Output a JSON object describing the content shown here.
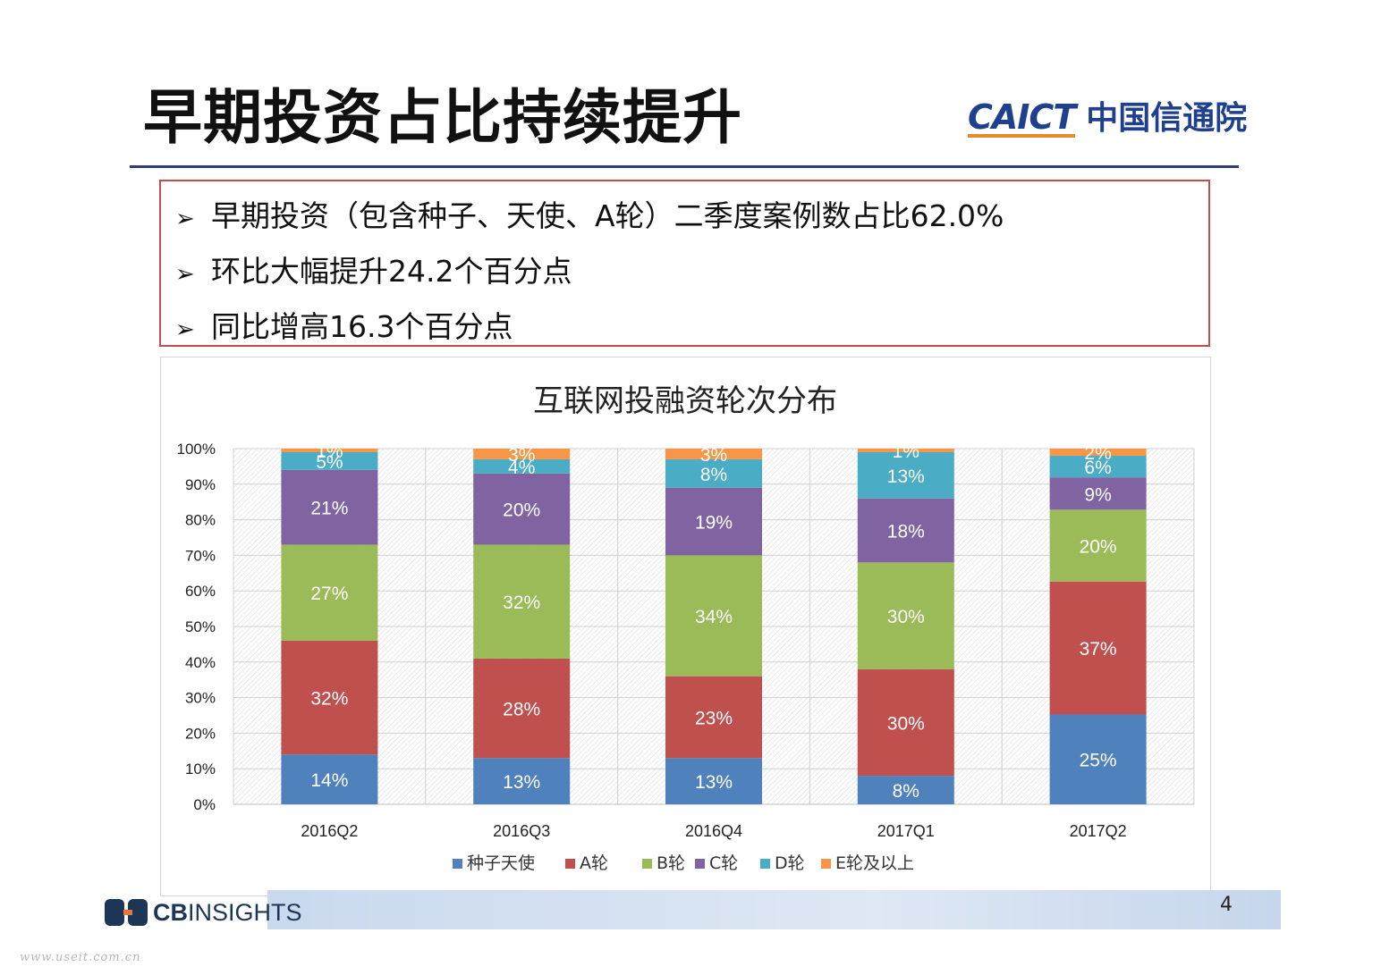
{
  "slide": {
    "title": "早期投资占比持续提升",
    "logo_en": "CAICT",
    "logo_cn": "中国信通院",
    "page_number": "4",
    "footer_logo_cb": "CB",
    "footer_logo_text": "INSIGHTS",
    "watermark": "www.useit.com.cn"
  },
  "bullets": [
    {
      "marker": "➢",
      "text": "早期投资（包含种子、天使、A轮）二季度案例数占比62.0%"
    },
    {
      "marker": "➢",
      "text": "环比大幅提升24.2个百分点"
    },
    {
      "marker": "➢",
      "text": "同比增高16.3个百分点"
    }
  ],
  "colors": {
    "title_rule": "#2a3f7a",
    "box_border": "#c0504d"
  },
  "chart_data": {
    "type": "bar",
    "stacked": true,
    "percent": true,
    "title": "互联网投融资轮次分布",
    "categories": [
      "2016Q2",
      "2016Q3",
      "2016Q4",
      "2017Q1",
      "2017Q2"
    ],
    "ylim": [
      0,
      100
    ],
    "yticks": [
      "0%",
      "10%",
      "20%",
      "30%",
      "40%",
      "50%",
      "60%",
      "70%",
      "80%",
      "90%",
      "100%"
    ],
    "legend_position": "bottom",
    "series": [
      {
        "name": "种子天使",
        "color": "#4f81bd",
        "values": [
          14,
          13,
          13,
          8,
          25
        ]
      },
      {
        "name": "A轮",
        "color": "#c0504d",
        "values": [
          32,
          28,
          23,
          30,
          37
        ]
      },
      {
        "name": "B轮",
        "color": "#9bbb59",
        "values": [
          27,
          32,
          34,
          30,
          20
        ]
      },
      {
        "name": "C轮",
        "color": "#8064a2",
        "values": [
          21,
          20,
          19,
          18,
          9
        ]
      },
      {
        "name": "D轮",
        "color": "#4bacc6",
        "values": [
          5,
          4,
          8,
          13,
          6
        ]
      },
      {
        "name": "E轮及以上",
        "color": "#f79646",
        "values": [
          1,
          3,
          3,
          1,
          2
        ]
      }
    ]
  }
}
